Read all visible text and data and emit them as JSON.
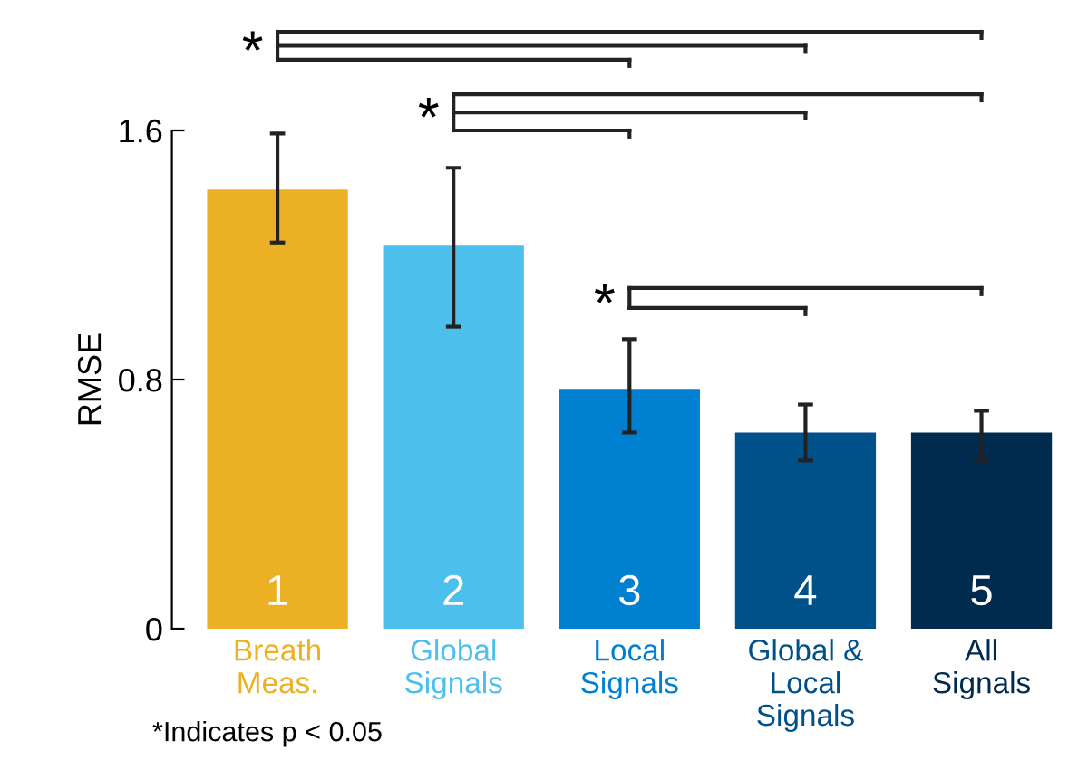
{
  "chart_data": {
    "type": "bar",
    "ylabel": "RMSE",
    "categories": [
      "Breath\nMeas.",
      "Global\nSignals",
      "Local\nSignals",
      "Global &\nLocal\nSignals",
      "All\nSignals"
    ],
    "values": [
      1.41,
      1.23,
      0.77,
      0.63,
      0.63
    ],
    "errors": [
      [
        1.24,
        1.59
      ],
      [
        0.97,
        1.48
      ],
      [
        0.63,
        0.93
      ],
      [
        0.54,
        0.72
      ],
      [
        0.54,
        0.7
      ]
    ],
    "colors": [
      "#ebb023",
      "#4dbfec",
      "#0080d0",
      "#00508a",
      "#002b4f"
    ],
    "ylim": [
      0,
      1.6
    ],
    "yticks": [
      0,
      0.8,
      1.6
    ],
    "grid": false,
    "annotations": [
      "1",
      "2",
      "3",
      "4",
      "5",
      "*",
      "*",
      "*",
      "*Indicates p < 0.05"
    ]
  }
}
